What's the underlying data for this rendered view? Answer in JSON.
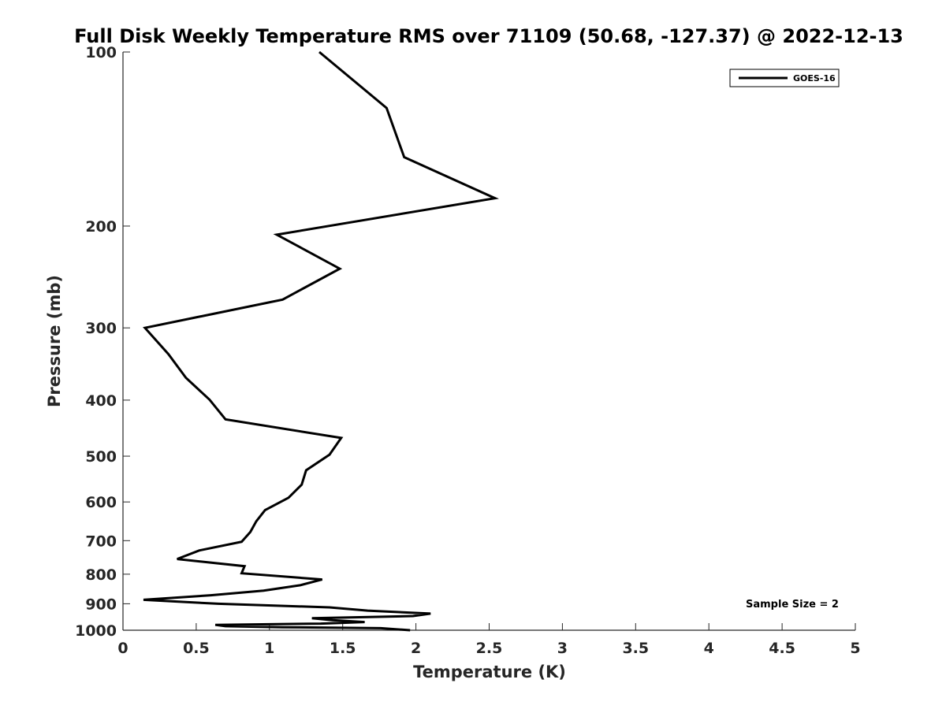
{
  "chart_data": {
    "type": "line",
    "title": "Full Disk Weekly Temperature RMS over 71109 (50.68, -127.37) @ 2022-12-13",
    "xlabel": "Temperature (K)",
    "ylabel": "Pressure (mb)",
    "xlim": [
      0,
      5
    ],
    "ylim": [
      100,
      1000
    ],
    "yscale": "log",
    "y_reversed": true,
    "xticks": [
      "0",
      "0.5",
      "1",
      "1.5",
      "2",
      "2.5",
      "3",
      "3.5",
      "4",
      "4.5",
      "5"
    ],
    "yticks": [
      "100",
      "200",
      "300",
      "400",
      "500",
      "600",
      "700",
      "800",
      "900",
      "1000"
    ],
    "grid": false,
    "legend_position": "top-right",
    "series": [
      {
        "name": "GOES-16",
        "color": "#000000",
        "points": [
          [
            1.34,
            100
          ],
          [
            1.8,
            125
          ],
          [
            1.92,
            152
          ],
          [
            2.54,
            179
          ],
          [
            1.05,
            207
          ],
          [
            1.48,
            237
          ],
          [
            1.09,
            268
          ],
          [
            0.15,
            300
          ],
          [
            0.31,
            333
          ],
          [
            0.43,
            366
          ],
          [
            0.59,
            399
          ],
          [
            0.7,
            432
          ],
          [
            1.49,
            465
          ],
          [
            1.41,
            497
          ],
          [
            1.25,
            529
          ],
          [
            1.22,
            560
          ],
          [
            1.13,
            590
          ],
          [
            0.97,
            620
          ],
          [
            0.91,
            648
          ],
          [
            0.87,
            676
          ],
          [
            0.81,
            703
          ],
          [
            0.52,
            728
          ],
          [
            0.37,
            753
          ],
          [
            0.83,
            775
          ],
          [
            0.81,
            797
          ],
          [
            1.36,
            817
          ],
          [
            1.21,
            836
          ],
          [
            0.96,
            854
          ],
          [
            0.6,
            870
          ],
          [
            0.14,
            886
          ],
          [
            0.65,
            900
          ],
          [
            1.41,
            913
          ],
          [
            1.67,
            925
          ],
          [
            2.1,
            936
          ],
          [
            1.98,
            945
          ],
          [
            1.29,
            953
          ],
          [
            1.43,
            961
          ],
          [
            1.65,
            968
          ],
          [
            1.35,
            974
          ],
          [
            0.63,
            979
          ],
          [
            0.7,
            984
          ],
          [
            1.09,
            988
          ],
          [
            1.76,
            992
          ],
          [
            1.96,
            1000
          ]
        ]
      }
    ],
    "annotations": [
      "Sample Size = 2"
    ]
  }
}
